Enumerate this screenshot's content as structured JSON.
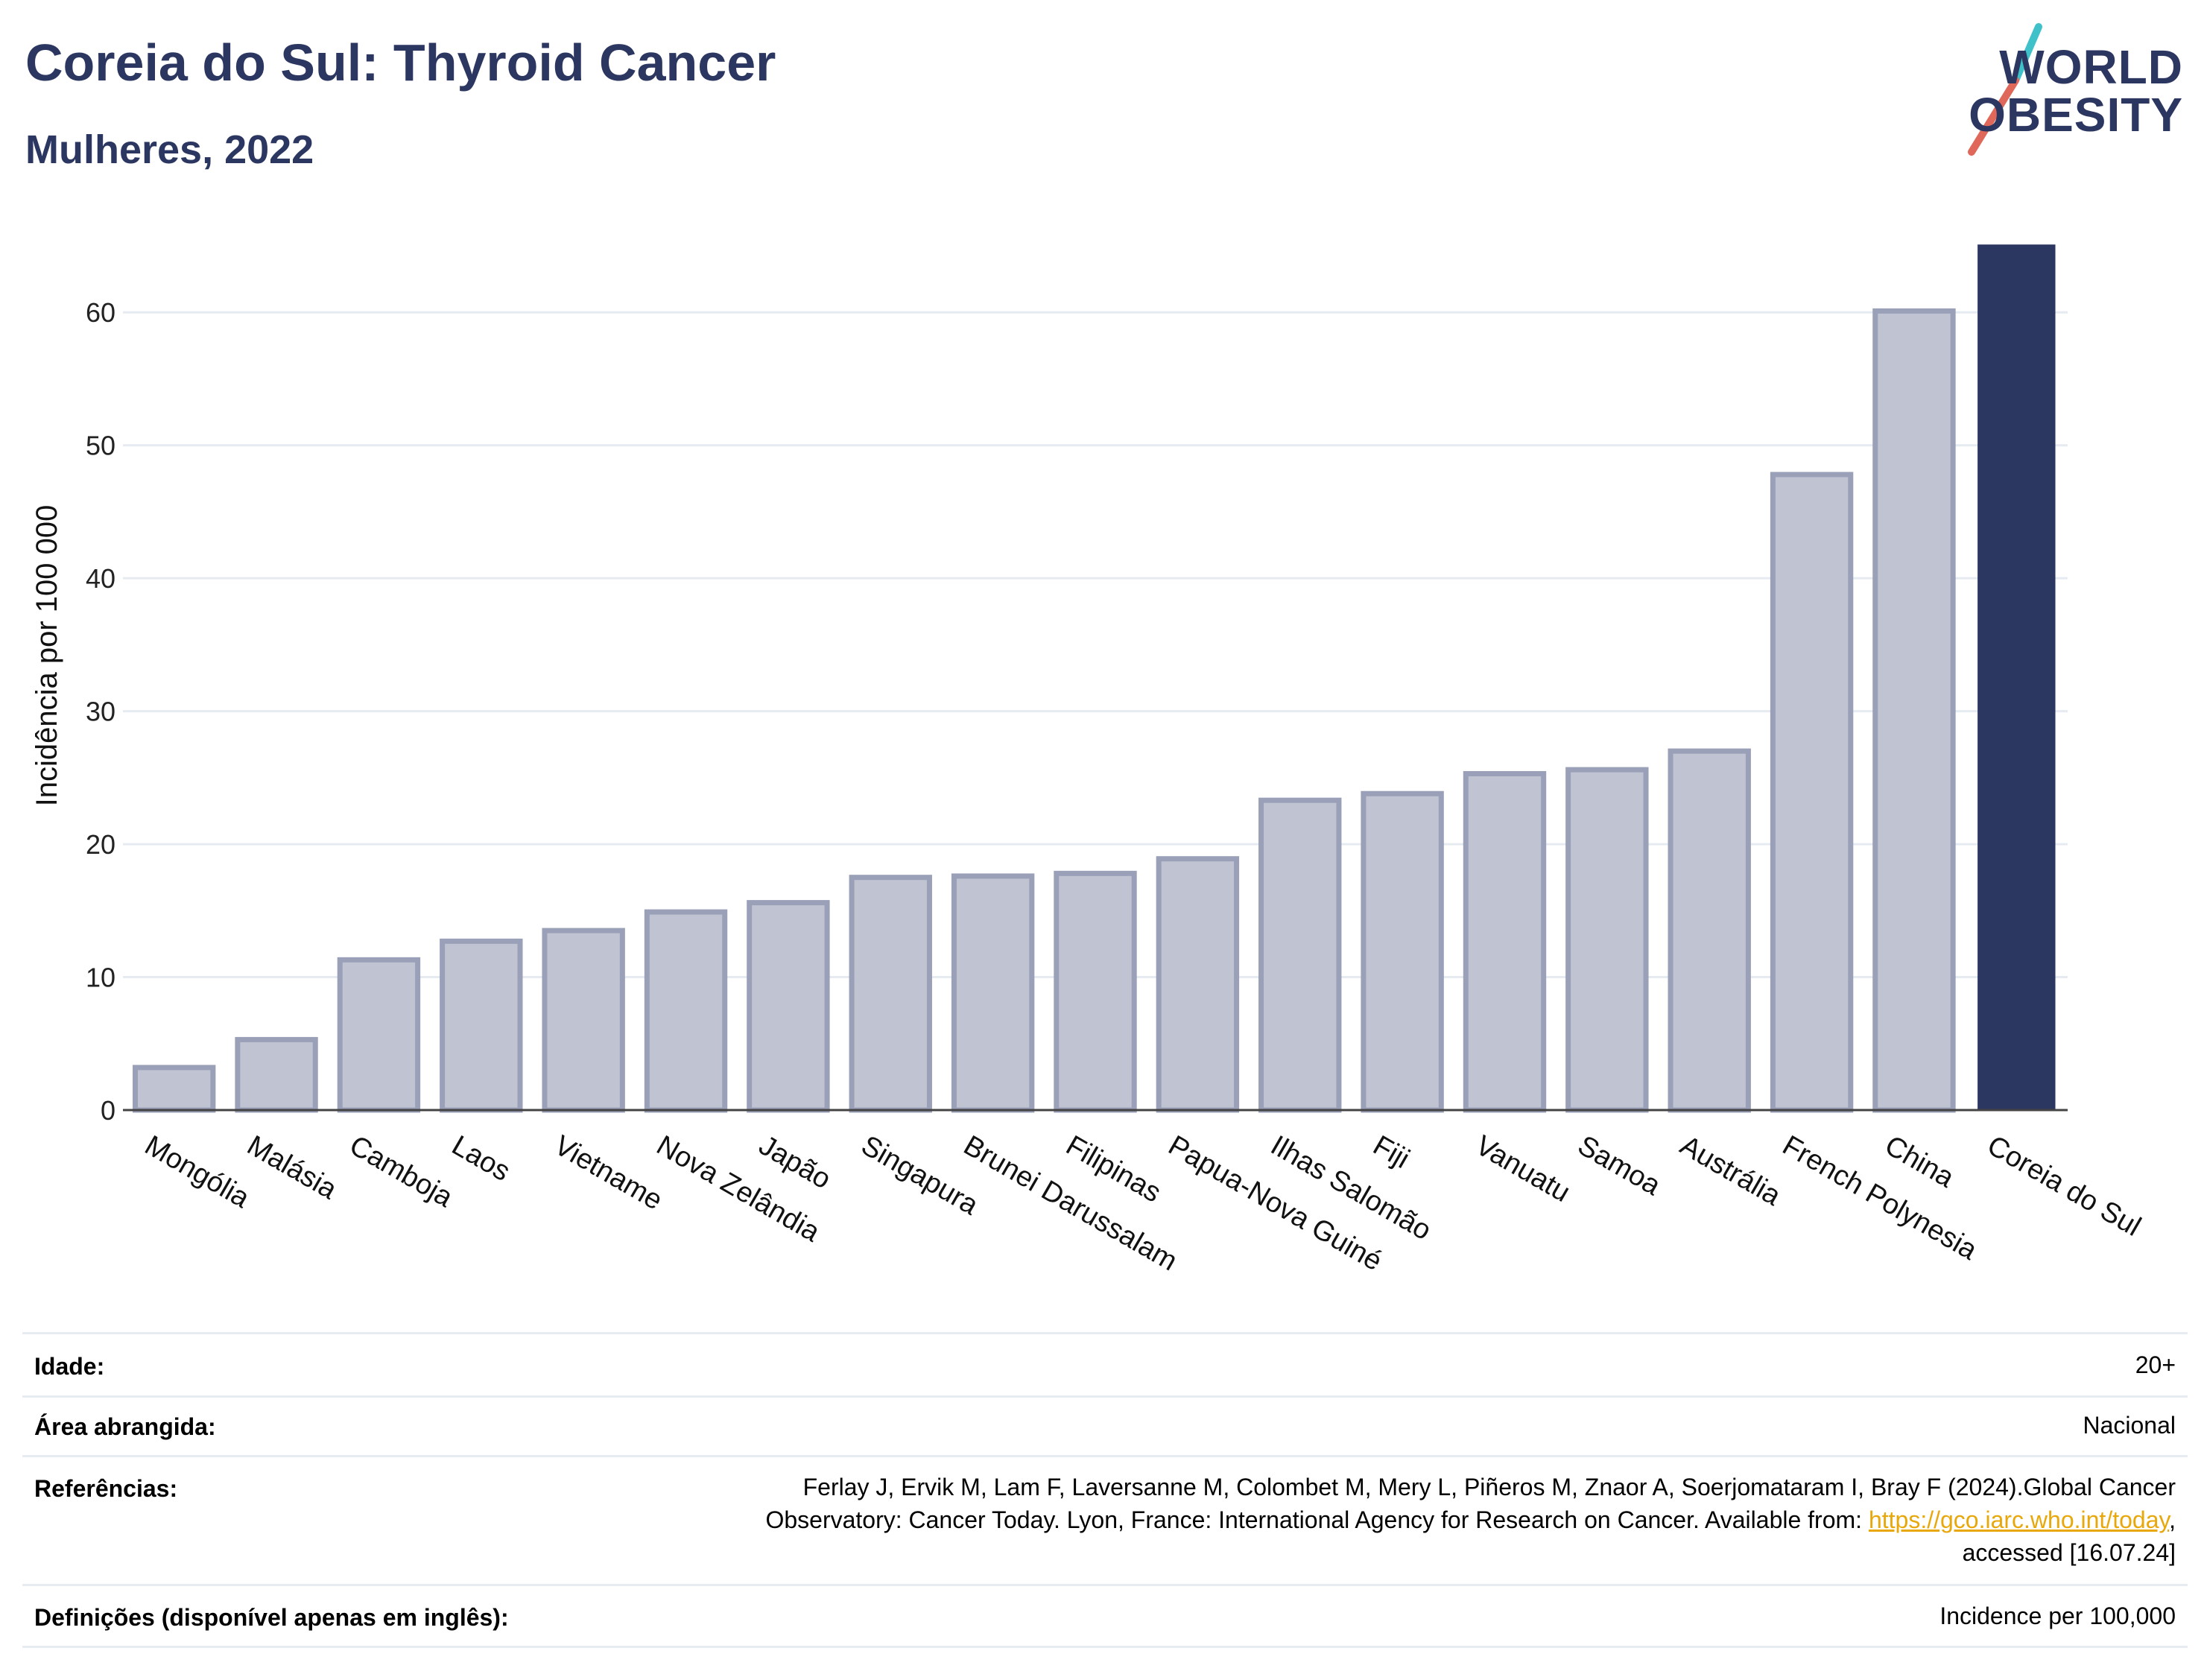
{
  "header": {
    "title": "Coreia do Sul: Thyroid Cancer",
    "subtitle": "Mulheres, 2022"
  },
  "logo": {
    "line1": "WORLD",
    "line2": "OBESITY",
    "colors": {
      "text": "#2b3661",
      "slash_top": "#3ec1c8",
      "slash_bottom": "#e0685a"
    }
  },
  "chart_data": {
    "type": "bar",
    "title": "",
    "xlabel": "",
    "ylabel": "Incidência por 100 000",
    "ylim": [
      0,
      65
    ],
    "yticks": [
      0,
      10,
      20,
      30,
      40,
      50,
      60
    ],
    "grid": true,
    "categories": [
      "Mongólia",
      "Malásia",
      "Camboja",
      "Laos",
      "Vietname",
      "Nova Zelândia",
      "Japão",
      "Singapura",
      "Brunei Darussalam",
      "Filipinas",
      "Papua-Nova Guiné",
      "Ilhas Salomão",
      "Fiji",
      "Vanuatu",
      "Samoa",
      "Austrália",
      "French Polynesia",
      "China",
      "Coreia do Sul"
    ],
    "values": [
      3.2,
      5.3,
      11.3,
      12.7,
      13.5,
      14.9,
      15.6,
      17.5,
      17.6,
      17.8,
      18.9,
      23.3,
      23.8,
      25.3,
      25.6,
      27.0,
      47.8,
      60.1,
      65.1
    ],
    "highlight": "Coreia do Sul",
    "colors": {
      "bar": "#c0c3d1",
      "bar_border": "#9aa0b8",
      "highlight": "#2b3661"
    }
  },
  "meta": {
    "age_label": "Idade:",
    "age_value": "20+",
    "area_label": "Área abrangida:",
    "area_value": "Nacional",
    "refs_label": "Referências:",
    "refs_line1": "Ferlay J, Ervik M, Lam F, Laversanne M, Colombet M, Mery L, Piñeros M, Znaor A, Soerjomataram I, Bray F (2024).Global Cancer",
    "refs_line2": "Observatory: Cancer Today. Lyon, France: International Agency for Research on Cancer. Available from: ",
    "refs_link": "https://gco.iarc.who.int/today",
    "refs_line2_end": ",",
    "refs_line3": "accessed [16.07.24]",
    "defs_label": "Definições (disponível apenas em inglês):",
    "defs_value": "Incidence per 100,000"
  }
}
